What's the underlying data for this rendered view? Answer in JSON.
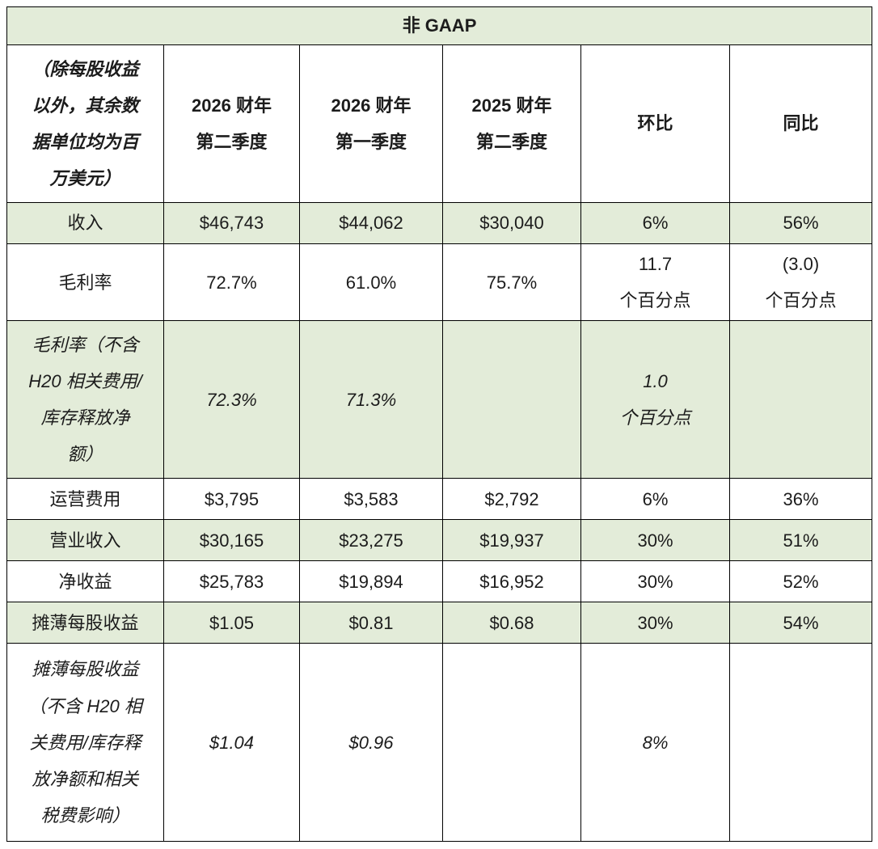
{
  "table": {
    "title": "非 GAAP",
    "header": {
      "note": "（除每股收益\n以外，其余数\n据单位均为百\n万美元）",
      "col_q2_fy2026": "2026 财年\n第二季度",
      "col_q1_fy2026": "2026 财年\n第一季度",
      "col_q2_fy2025": "2025 财年\n第二季度",
      "col_qoq": "环比",
      "col_yoy": "同比"
    },
    "rows": [
      {
        "label": "收入",
        "values": [
          "$46,743",
          "$44,062",
          "$30,040",
          "6%",
          "56%"
        ]
      },
      {
        "label": "毛利率",
        "values": [
          "72.7%",
          "61.0%",
          "75.7%",
          "11.7\n个百分点",
          "(3.0)\n个百分点"
        ]
      },
      {
        "label": "毛利率（不含\nH20 相关费用/\n库存释放净\n额）",
        "values": [
          "72.3%",
          "71.3%",
          "",
          "1.0\n个百分点",
          ""
        ]
      },
      {
        "label": "运营费用",
        "values": [
          "$3,795",
          "$3,583",
          "$2,792",
          "6%",
          "36%"
        ]
      },
      {
        "label": "营业收入",
        "values": [
          "$30,165",
          "$23,275",
          "$19,937",
          "30%",
          "51%"
        ]
      },
      {
        "label": "净收益",
        "values": [
          "$25,783",
          "$19,894",
          "$16,952",
          "30%",
          "52%"
        ]
      },
      {
        "label": "摊薄每股收益",
        "values": [
          "$1.05",
          "$0.81",
          "$0.68",
          "30%",
          "54%"
        ]
      },
      {
        "label": "摊薄每股收益\n（不含 H20 相\n关费用/库存释\n放净额和相关\n税费影响）",
        "values": [
          "$1.04",
          "$0.96",
          "",
          "8%",
          ""
        ]
      }
    ]
  },
  "colors": {
    "row_shading": "#e3ecd9",
    "border": "#000000",
    "text": "#1c1c1c"
  }
}
